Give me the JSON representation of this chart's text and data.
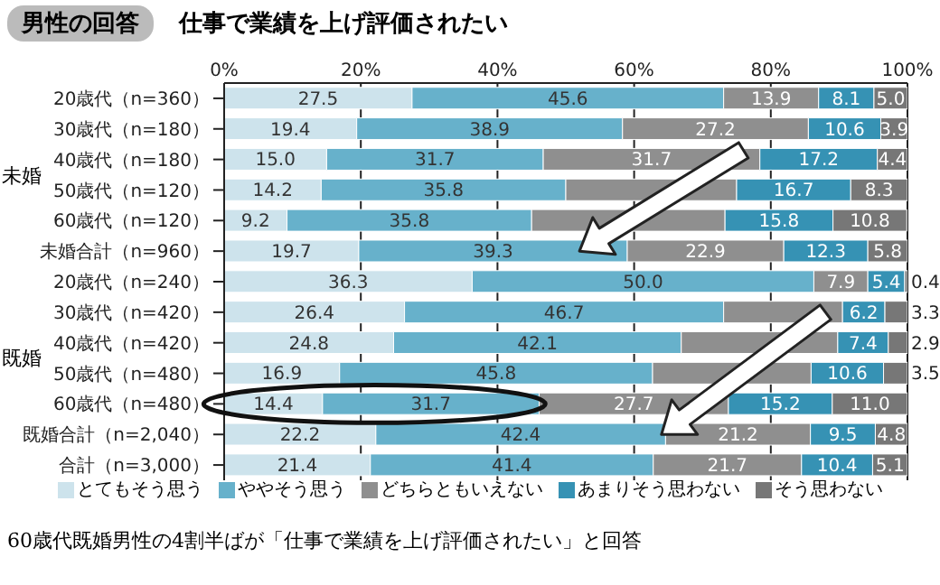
{
  "chart_data": {
    "type": "bar",
    "orientation": "horizontal",
    "stacked": true,
    "title": "仕事で業績を上げ評価されたい",
    "subtitle": "男性の回答",
    "categories": [
      "20歳代（n=360）",
      "30歳代（n=180）",
      "40歳代（n=180）",
      "50歳代（n=120）",
      "60歳代（n=120）",
      "未婚合計（n=960）",
      "20歳代（n=240）",
      "30歳代（n=420）",
      "40歳代（n=420）",
      "50歳代（n=480）",
      "60歳代（n=480）",
      "既婚合計（n=2,040）",
      "合計（n=3,000）"
    ],
    "series": [
      {
        "name": "とてもそう思う",
        "color": "#cde3ec",
        "values": [
          27.5,
          19.4,
          15.0,
          14.2,
          9.2,
          19.7,
          36.3,
          26.4,
          24.8,
          16.9,
          14.4,
          22.2,
          21.4
        ],
        "value_labels": [
          "27.5",
          "19.4",
          "15.0",
          "14.2",
          "9.2",
          "19.7",
          "36.3",
          "26.4",
          "24.8",
          "16.9",
          "14.4",
          "22.2",
          "21.4"
        ]
      },
      {
        "name": "ややそう思う",
        "color": "#67b1cb",
        "values": [
          45.6,
          38.9,
          31.7,
          35.8,
          35.8,
          39.3,
          50.0,
          46.7,
          42.1,
          45.8,
          31.7,
          42.4,
          41.4
        ],
        "value_labels": [
          "45.6",
          "38.9",
          "31.7",
          "35.8",
          "35.8",
          "39.3",
          "50.0",
          "46.7",
          "42.1",
          "45.8",
          "31.7",
          "42.4",
          "41.4"
        ]
      },
      {
        "name": "どちらともいえない",
        "color": "#8f8f8f",
        "values": [
          13.9,
          27.2,
          31.7,
          25.0,
          28.3,
          22.9,
          7.9,
          17.4,
          22.9,
          23.2,
          27.7,
          21.2,
          21.7
        ],
        "value_labels": [
          "13.9",
          "27.2",
          "31.7",
          null,
          null,
          "22.9",
          "7.9",
          null,
          null,
          null,
          "27.7",
          "21.2",
          "21.7"
        ]
      },
      {
        "name": "あまりそう思わない",
        "color": "#3692b4",
        "values": [
          8.1,
          10.6,
          17.2,
          16.7,
          15.8,
          12.3,
          5.4,
          6.2,
          7.4,
          10.6,
          15.2,
          9.5,
          10.4
        ],
        "value_labels": [
          "8.1",
          "10.6",
          "17.2",
          "16.7",
          "15.8",
          "12.3",
          "5.4",
          "6.2",
          "7.4",
          "10.6",
          "15.2",
          "9.5",
          "10.4"
        ]
      },
      {
        "name": "そう思わない",
        "color": "#777777",
        "values": [
          5.0,
          3.9,
          4.4,
          8.3,
          10.8,
          5.8,
          0.4,
          3.3,
          2.9,
          3.5,
          11.0,
          4.8,
          5.1
        ],
        "value_labels": [
          "5.0",
          "3.9",
          "4.4",
          "8.3",
          "10.8",
          "5.8",
          "0.4",
          "3.3",
          "2.9",
          "3.5",
          "11.0",
          "4.8",
          "5.1"
        ]
      }
    ],
    "xlim": [
      0,
      100
    ],
    "xticks": [
      {
        "value": 0,
        "label": "0%"
      },
      {
        "value": 20,
        "label": "20%"
      },
      {
        "value": 40,
        "label": "40%"
      },
      {
        "value": 60,
        "label": "60%"
      },
      {
        "value": 80,
        "label": "80%"
      },
      {
        "value": 100,
        "label": "100%"
      }
    ],
    "grid": "x",
    "legend": "bottom",
    "annotations": [
      "未婚",
      "既婚",
      "60歳代既婚男性の4割半ばが「仕事で業績を上げ評価されたい」と回答"
    ]
  }
}
